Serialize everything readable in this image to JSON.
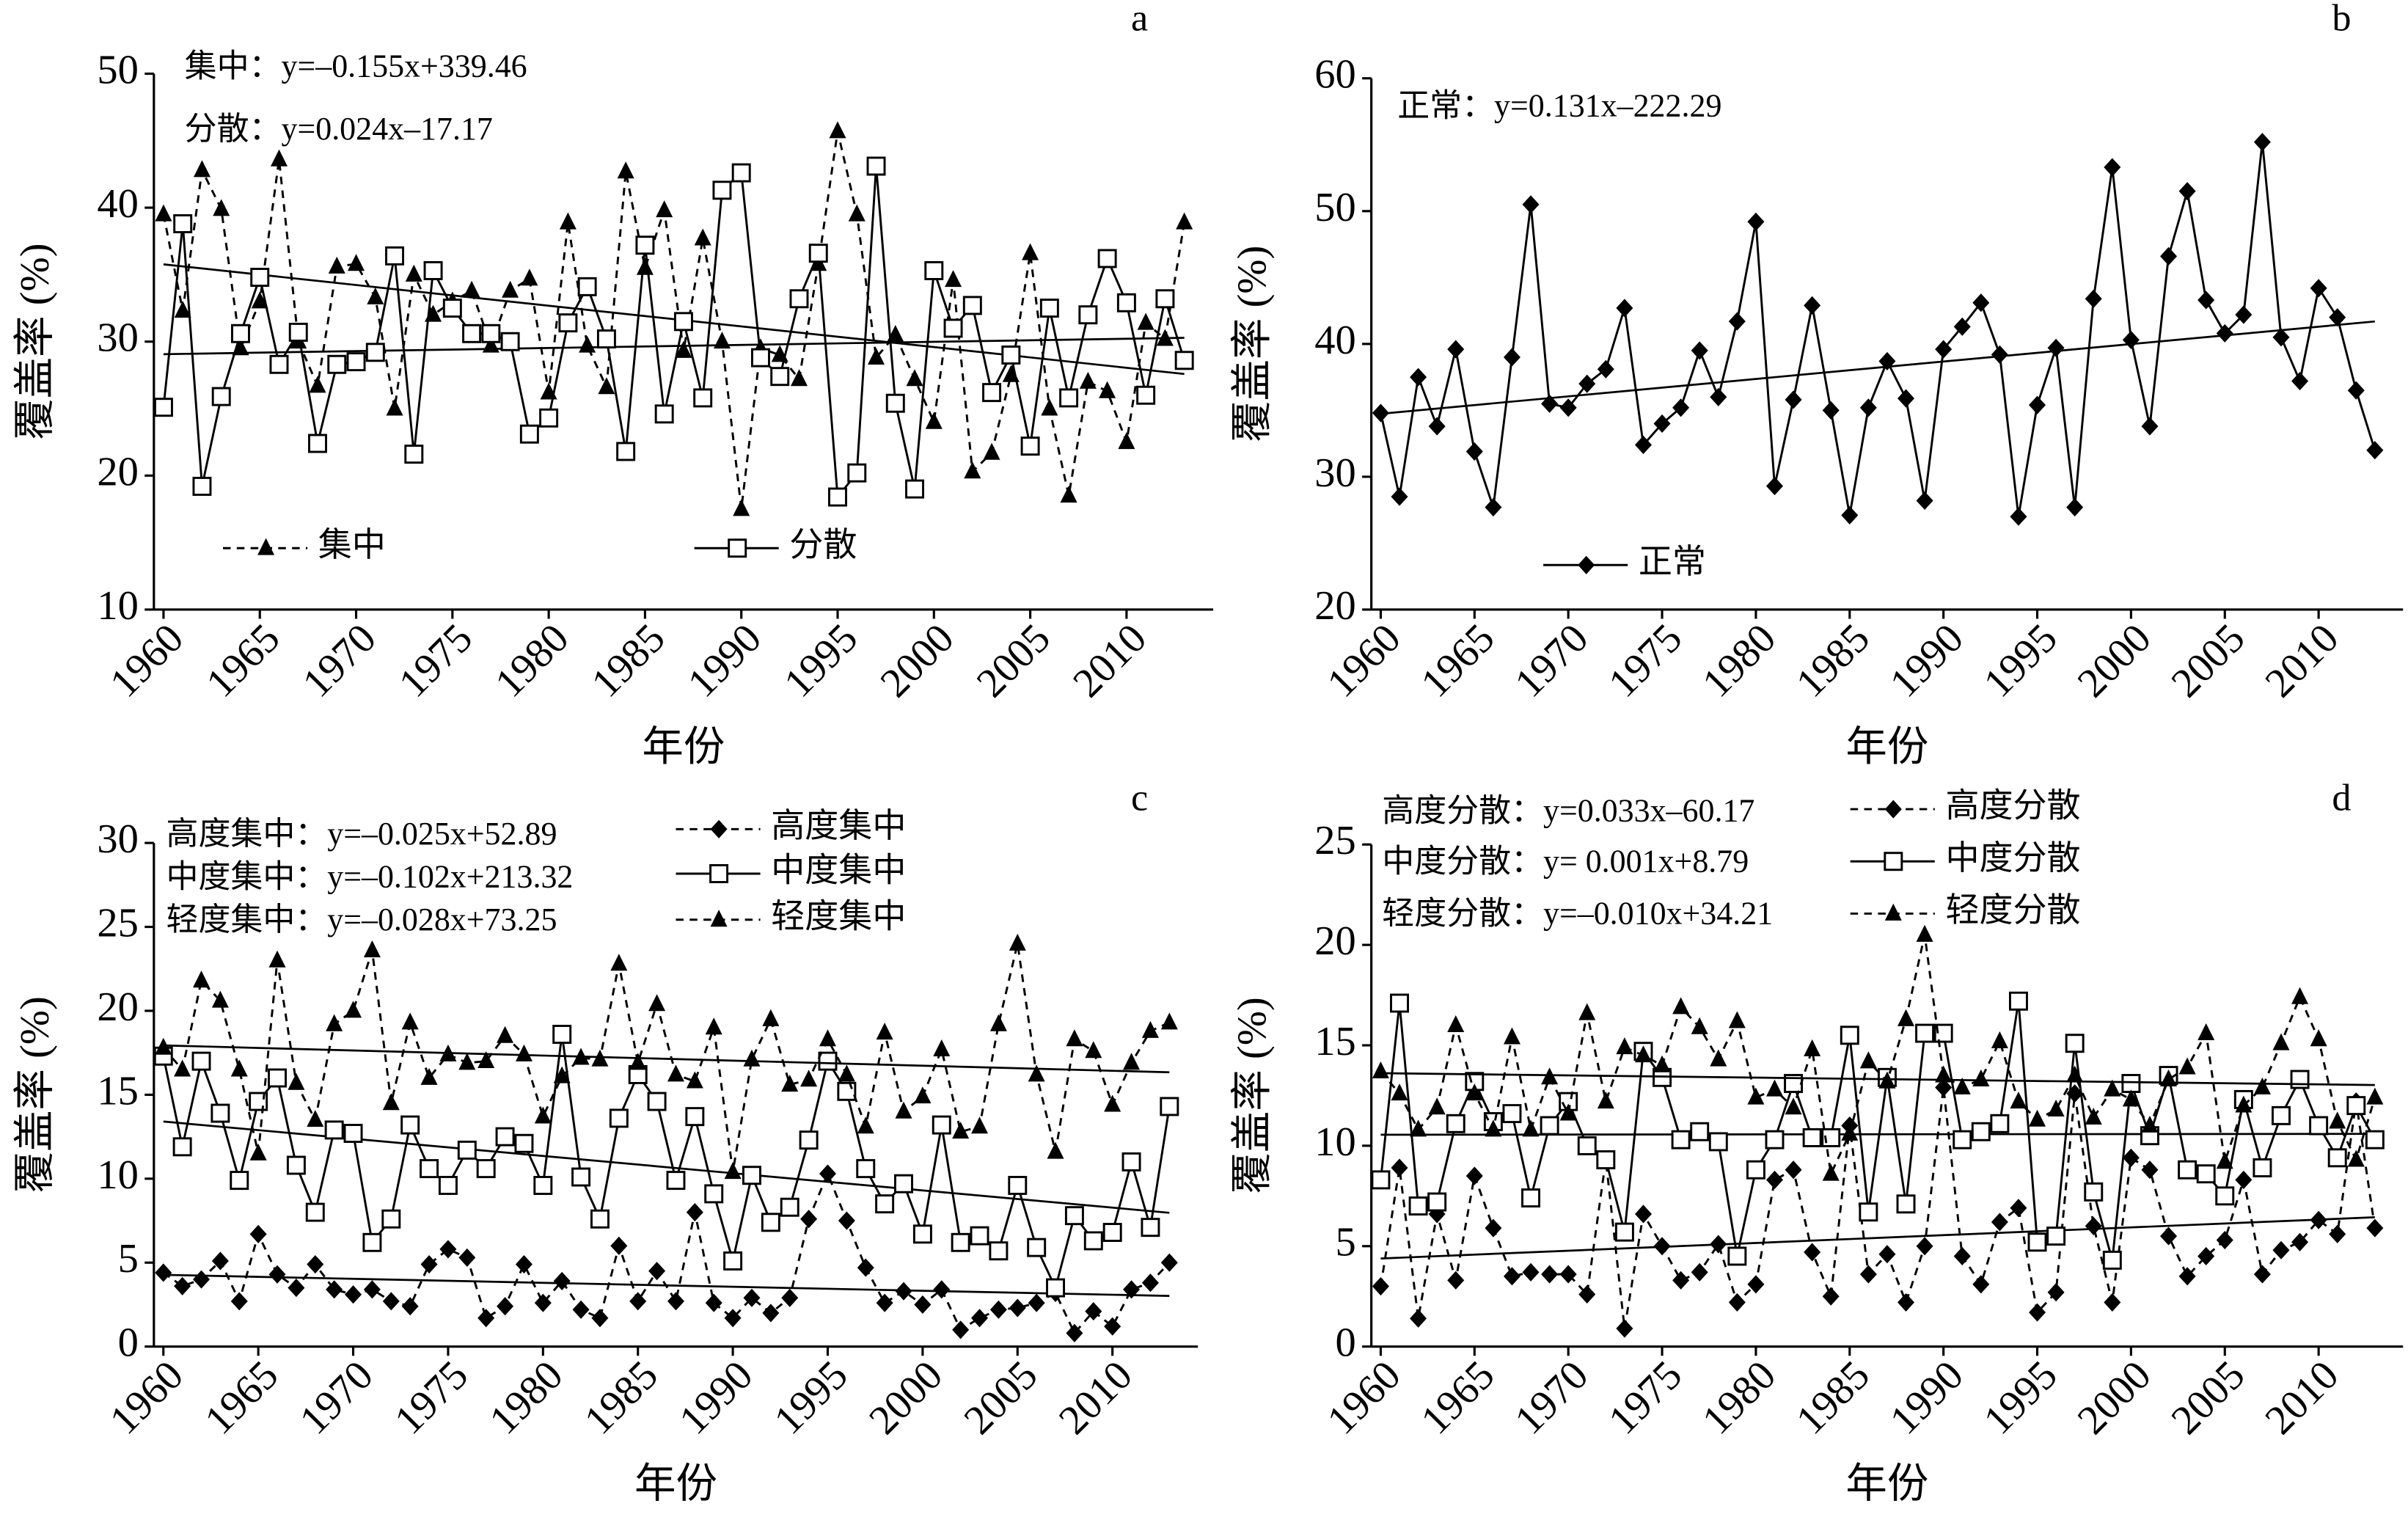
{
  "chart_data": [
    {
      "type": "line",
      "label": "a",
      "equations": [
        "集中：y=–0.155x+339.46",
        "分散：y=0.024x–17.17"
      ],
      "x_label": "年份",
      "y_label": "覆盖率 (%)",
      "x": [
        1960,
        1961,
        1962,
        1963,
        1964,
        1965,
        1966,
        1967,
        1968,
        1969,
        1970,
        1971,
        1972,
        1973,
        1974,
        1975,
        1976,
        1977,
        1978,
        1979,
        1980,
        1981,
        1982,
        1983,
        1984,
        1985,
        1986,
        1987,
        1988,
        1989,
        1990,
        1991,
        1992,
        1993,
        1994,
        1995,
        1996,
        1997,
        1998,
        1999,
        2000,
        2001,
        2002,
        2003,
        2004,
        2005,
        2006,
        2007,
        2008,
        2009,
        2010,
        2011,
        2012,
        2013
      ],
      "xlim": [
        1959.5,
        2014.5
      ],
      "xticks": [
        1960,
        1965,
        1970,
        1975,
        1980,
        1985,
        1990,
        1995,
        2000,
        2005,
        2010
      ],
      "ylim": [
        10,
        50
      ],
      "yticks": [
        10,
        20,
        30,
        40,
        50
      ],
      "legend": "bottom-horizontal",
      "series": [
        {
          "name": "集中",
          "color": "#000000",
          "marker": "triangle",
          "linestyle": "dashed",
          "values": [
            39.5,
            32.3,
            42.8,
            39.9,
            29.5,
            33,
            43.6,
            30,
            26.7,
            35.6,
            35.8,
            33.3,
            25,
            35,
            32,
            33,
            33.8,
            29.7,
            33.8,
            34.7,
            26.2,
            38.9,
            29.7,
            26.6,
            42.7,
            35.5,
            39.8,
            29.3,
            37.7,
            30,
            17.5,
            29.5,
            29,
            27.2,
            35.8,
            45.7,
            39.5,
            28.8,
            30.5,
            27.2,
            24,
            34.6,
            20.3,
            21.7,
            27.5,
            36.6,
            25,
            18.5,
            27,
            26.3,
            22.5,
            31.4,
            30.2,
            38.9
          ]
        },
        {
          "name": "分散",
          "color": "#000000",
          "marker": "square",
          "linestyle": "solid",
          "values": [
            25.1,
            38.8,
            19.2,
            25.9,
            30.6,
            34.8,
            28.3,
            30.7,
            22.4,
            28.3,
            28.5,
            29.2,
            36.4,
            21.6,
            35.3,
            32.5,
            30.6,
            30.6,
            30,
            23.1,
            24.3,
            31.4,
            34.1,
            30.2,
            21.8,
            37.2,
            24.6,
            31.5,
            25.8,
            41.3,
            42.6,
            28.8,
            27.4,
            33.2,
            36.6,
            18.4,
            20.2,
            43.1,
            25.4,
            19,
            35.3,
            31,
            32.7,
            26.2,
            29,
            22.2,
            32.5,
            25.8,
            32,
            36.2,
            32.9,
            26,
            33.2,
            28.6
          ]
        }
      ]
    },
    {
      "type": "line",
      "label": "b",
      "equations": [
        "正常：y=0.131x–222.29"
      ],
      "x_label": "年份",
      "y_label": "覆盖率 (%)",
      "x": [
        1960,
        1961,
        1962,
        1963,
        1964,
        1965,
        1966,
        1967,
        1968,
        1969,
        1970,
        1971,
        1972,
        1973,
        1974,
        1975,
        1976,
        1977,
        1978,
        1979,
        1980,
        1981,
        1982,
        1983,
        1984,
        1985,
        1986,
        1987,
        1988,
        1989,
        1990,
        1991,
        1992,
        1993,
        1994,
        1995,
        1996,
        1997,
        1998,
        1999,
        2000,
        2001,
        2002,
        2003,
        2004,
        2005,
        2006,
        2007,
        2008,
        2009,
        2010,
        2011,
        2012,
        2013
      ],
      "xlim": [
        1959.5,
        2014.5
      ],
      "xticks": [
        1960,
        1965,
        1970,
        1975,
        1980,
        1985,
        1990,
        1995,
        2000,
        2005,
        2010
      ],
      "ylim": [
        20,
        60
      ],
      "yticks": [
        20,
        30,
        40,
        50,
        60
      ],
      "legend": "bottom-horizontal",
      "series": [
        {
          "name": "正常",
          "color": "#000000",
          "marker": "diamond",
          "linestyle": "solid",
          "values": [
            34.8,
            28.5,
            37.5,
            33.8,
            39.6,
            31.9,
            27.7,
            39,
            50.5,
            35.5,
            35.2,
            37,
            38.1,
            42.7,
            32.4,
            34,
            35.2,
            39.5,
            36,
            41.7,
            49.2,
            29.3,
            35.8,
            42.9,
            35,
            27.1,
            35.2,
            38.7,
            35.9,
            28.2,
            39.6,
            41.3,
            43.1,
            39.2,
            27,
            35.4,
            39.7,
            27.7,
            43.4,
            53.3,
            40.3,
            33.8,
            46.6,
            51.5,
            43.3,
            40.8,
            42.2,
            55.2,
            40.5,
            37.2,
            44.2,
            42,
            36.5,
            32
          ]
        }
      ]
    },
    {
      "type": "line",
      "label": "c",
      "equations": [
        "高度集中：y=–0.025x+52.89",
        "中度集中：y=–0.102x+213.32",
        "轻度集中：y=–0.028x+73.25"
      ],
      "x_label": "年份",
      "y_label": "覆盖率 (%)",
      "x": [
        1960,
        1961,
        1962,
        1963,
        1964,
        1965,
        1966,
        1967,
        1968,
        1969,
        1970,
        1971,
        1972,
        1973,
        1974,
        1975,
        1976,
        1977,
        1978,
        1979,
        1980,
        1981,
        1982,
        1983,
        1984,
        1985,
        1986,
        1987,
        1988,
        1989,
        1990,
        1991,
        1992,
        1993,
        1994,
        1995,
        1996,
        1997,
        1998,
        1999,
        2000,
        2001,
        2002,
        2003,
        2004,
        2005,
        2006,
        2007,
        2008,
        2009,
        2010,
        2011,
        2012,
        2013
      ],
      "xlim": [
        1959.5,
        2014.5
      ],
      "xticks": [
        1960,
        1965,
        1970,
        1975,
        1980,
        1985,
        1990,
        1995,
        2000,
        2005,
        2010
      ],
      "ylim": [
        0,
        30
      ],
      "yticks": [
        0,
        5,
        10,
        15,
        20,
        25,
        30
      ],
      "legend": "top-vertical",
      "series": [
        {
          "name": "高度集中",
          "color": "#000000",
          "marker": "diamond",
          "linestyle": "dashed",
          "values": [
            4.4,
            3.6,
            4,
            5.1,
            2.7,
            6.7,
            4.3,
            3.5,
            4.9,
            3.4,
            3.1,
            3.4,
            2.7,
            2.4,
            4.9,
            5.8,
            5.3,
            1.7,
            2.4,
            4.9,
            2.6,
            3.9,
            2.2,
            1.7,
            6,
            2.7,
            4.5,
            2.7,
            8,
            2.6,
            1.7,
            2.9,
            2,
            2.9,
            7.6,
            10.3,
            7.5,
            4.7,
            2.6,
            3.3,
            2.5,
            3.4,
            1,
            1.7,
            2.2,
            2.3,
            2.6,
            3.2,
            0.8,
            2.1,
            1.2,
            3.4,
            3.8,
            5
          ]
        },
        {
          "name": "中度集中",
          "color": "#000000",
          "marker": "square",
          "linestyle": "solid",
          "values": [
            17.3,
            11.9,
            17,
            13.9,
            9.9,
            14.6,
            16,
            10.8,
            8,
            12.9,
            12.7,
            6.2,
            7.6,
            13.2,
            10.6,
            9.6,
            11.7,
            10.6,
            12.5,
            12.1,
            9.6,
            18.6,
            10.1,
            7.6,
            13.6,
            16.2,
            14.6,
            9.9,
            13.7,
            9.1,
            5.1,
            10.2,
            7.4,
            8.3,
            12.3,
            17,
            15.2,
            10.6,
            8.5,
            9.7,
            6.7,
            13.2,
            6.2,
            6.6,
            5.7,
            9.6,
            5.9,
            3.5,
            7.8,
            6.3,
            6.8,
            11,
            7.1,
            14.3
          ]
        },
        {
          "name": "轻度集中",
          "color": "#000000",
          "marker": "triangle",
          "linestyle": "dashed",
          "values": [
            17.8,
            16.5,
            21.8,
            20.6,
            16.5,
            11.5,
            23,
            15.7,
            13.5,
            19.2,
            20,
            23.6,
            14.5,
            19.3,
            16,
            17.4,
            16.9,
            17,
            18.5,
            17.4,
            13.7,
            16.1,
            17.2,
            17.1,
            22.8,
            16.9,
            20.4,
            16.2,
            15.8,
            19,
            10.4,
            17.1,
            19.5,
            15.6,
            15.9,
            18.3,
            16.2,
            13.1,
            18.7,
            14,
            14.9,
            17.7,
            12.8,
            13.1,
            19.2,
            24,
            16.2,
            11.6,
            18.3,
            17.6,
            14.4,
            16.9,
            18.8,
            19.3
          ]
        }
      ]
    },
    {
      "type": "line",
      "label": "d",
      "equations": [
        "高度分散：y=0.033x–60.17",
        "中度分散：y= 0.001x+8.79",
        "轻度分散：y=–0.010x+34.21"
      ],
      "x_label": "年份",
      "y_label": "覆盖率 (%)",
      "x": [
        1960,
        1961,
        1962,
        1963,
        1964,
        1965,
        1966,
        1967,
        1968,
        1969,
        1970,
        1971,
        1972,
        1973,
        1974,
        1975,
        1976,
        1977,
        1978,
        1979,
        1980,
        1981,
        1982,
        1983,
        1984,
        1985,
        1986,
        1987,
        1988,
        1989,
        1990,
        1991,
        1992,
        1993,
        1994,
        1995,
        1996,
        1997,
        1998,
        1999,
        2000,
        2001,
        2002,
        2003,
        2004,
        2005,
        2006,
        2007,
        2008,
        2009,
        2010,
        2011,
        2012,
        2013
      ],
      "xlim": [
        1959.5,
        2014.5
      ],
      "xticks": [
        1960,
        1965,
        1970,
        1975,
        1980,
        1985,
        1990,
        1995,
        2000,
        2005,
        2010
      ],
      "ylim": [
        0,
        25
      ],
      "yticks": [
        0,
        5,
        10,
        15,
        20,
        25
      ],
      "legend": "top-vertical",
      "series": [
        {
          "name": "高度分散",
          "color": "#000000",
          "marker": "diamond",
          "linestyle": "dashed",
          "values": [
            3,
            8.9,
            1.4,
            6.6,
            3.3,
            8.5,
            5.9,
            3.5,
            3.7,
            3.6,
            3.6,
            2.6,
            9.3,
            0.9,
            6.6,
            5,
            3.3,
            3.7,
            5.1,
            2.2,
            3.1,
            8.3,
            8.8,
            4.7,
            2.5,
            11,
            3.6,
            4.6,
            2.2,
            5,
            12.9,
            4.5,
            3.1,
            6.2,
            6.9,
            1.7,
            2.7,
            12.6,
            6,
            2.2,
            9.4,
            8.8,
            5.5,
            3.5,
            4.5,
            5.3,
            8.3,
            3.6,
            4.8,
            5.2,
            6.3,
            5.6,
            12.2,
            5.9
          ]
        },
        {
          "name": "中度分散",
          "color": "#000000",
          "marker": "square",
          "linestyle": "solid",
          "values": [
            8.3,
            17.1,
            7,
            7.2,
            11.1,
            13.2,
            11.2,
            11.6,
            7.4,
            11,
            12.2,
            10,
            9.3,
            5.7,
            14.7,
            13.4,
            10.3,
            10.7,
            10.2,
            4.5,
            8.8,
            10.3,
            13.1,
            10.4,
            10.4,
            15.5,
            6.7,
            13.4,
            7.1,
            15.6,
            15.6,
            10.3,
            10.7,
            11.1,
            17.2,
            5.2,
            5.5,
            15.1,
            7.7,
            4.3,
            13.1,
            10.5,
            13.5,
            8.8,
            8.6,
            7.5,
            12.3,
            8.9,
            11.5,
            13.3,
            11,
            9.4,
            12,
            10.3
          ]
        },
        {
          "name": "轻度分散",
          "color": "#000000",
          "marker": "triangle",
          "linestyle": "dashed",
          "values": [
            13.7,
            12.6,
            10.8,
            11.9,
            16,
            12.6,
            10.8,
            15.4,
            10.8,
            13.4,
            11.6,
            16.6,
            12.2,
            14.9,
            14.5,
            14,
            16.9,
            15.9,
            14.3,
            16.2,
            12.4,
            12.8,
            11.9,
            14.8,
            8.6,
            10.6,
            14.2,
            13.2,
            16.3,
            20.5,
            13.5,
            12.9,
            13.3,
            15.2,
            12.2,
            11.3,
            11.8,
            13.5,
            11.4,
            12.8,
            12.3,
            11,
            13.3,
            13.9,
            15.6,
            9.2,
            12,
            12.9,
            15.1,
            17.4,
            15.3,
            11.2,
            9.3,
            12.4
          ]
        }
      ]
    }
  ]
}
